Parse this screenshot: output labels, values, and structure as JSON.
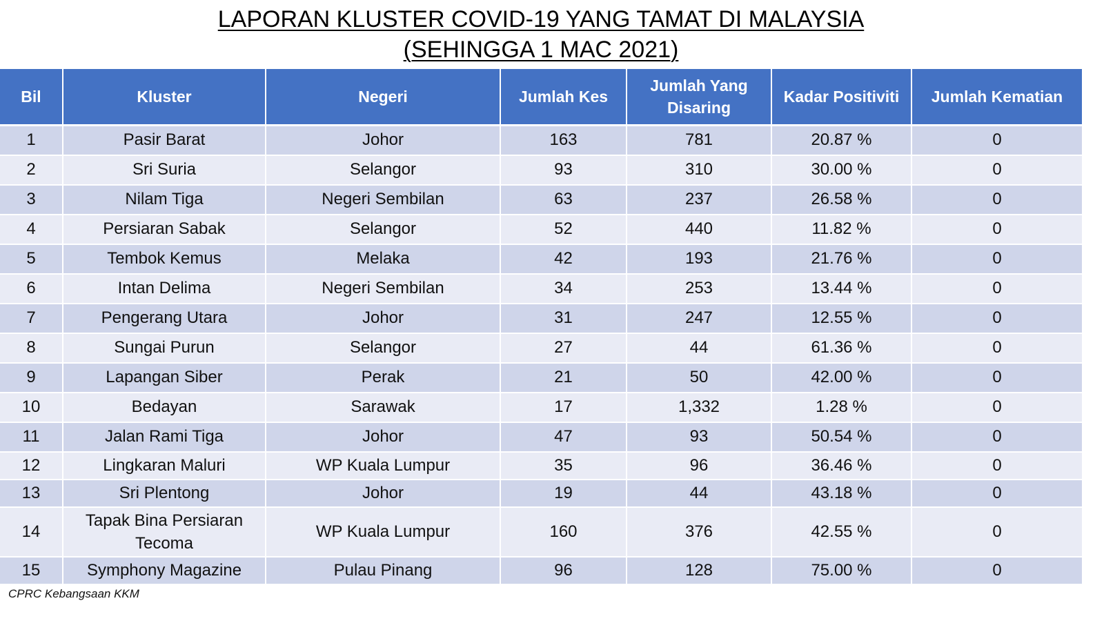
{
  "title": {
    "line1": "LAPORAN KLUSTER COVID-19 YANG TAMAT DI MALAYSIA",
    "line2": "(SEHINGGA  1 MAC 2021)"
  },
  "colors": {
    "header_bg": "#4472c4",
    "row_odd_bg": "#cfd5ea",
    "row_even_bg": "#e9ebf5"
  },
  "table": {
    "headers": [
      "Bil",
      "Kluster",
      "Negeri",
      "Jumlah Kes",
      "Jumlah Yang Disaring",
      "Kadar Positiviti",
      "Jumlah Kematian"
    ],
    "rows": [
      [
        "1",
        "Pasir Barat",
        "Johor",
        "163",
        "781",
        "20.87 %",
        "0"
      ],
      [
        "2",
        "Sri Suria",
        "Selangor",
        "93",
        "310",
        "30.00 %",
        "0"
      ],
      [
        "3",
        "Nilam Tiga",
        "Negeri Sembilan",
        "63",
        "237",
        "26.58 %",
        "0"
      ],
      [
        "4",
        "Persiaran Sabak",
        "Selangor",
        "52",
        "440",
        "11.82 %",
        "0"
      ],
      [
        "5",
        "Tembok Kemus",
        "Melaka",
        "42",
        "193",
        "21.76 %",
        "0"
      ],
      [
        "6",
        "Intan Delima",
        "Negeri Sembilan",
        "34",
        "253",
        "13.44 %",
        "0"
      ],
      [
        "7",
        "Pengerang Utara",
        "Johor",
        "31",
        "247",
        "12.55 %",
        "0"
      ],
      [
        "8",
        "Sungai Purun",
        "Selangor",
        "27",
        "44",
        "61.36 %",
        "0"
      ],
      [
        "9",
        "Lapangan Siber",
        "Perak",
        "21",
        "50",
        "42.00 %",
        "0"
      ],
      [
        "10",
        "Bedayan",
        "Sarawak",
        "17",
        "1,332",
        "1.28 %",
        "0"
      ],
      [
        "11",
        "Jalan Rami Tiga",
        "Johor",
        "47",
        "93",
        "50.54 %",
        "0"
      ],
      [
        "12",
        "Lingkaran Maluri",
        "WP Kuala Lumpur",
        "35",
        "96",
        "36.46 %",
        "0"
      ],
      [
        "13",
        "Sri Plentong",
        "Johor",
        "19",
        "44",
        "43.18 %",
        "0"
      ],
      [
        "14",
        "Tapak Bina Persiaran Tecoma",
        "WP Kuala Lumpur",
        "160",
        "376",
        "42.55 %",
        "0"
      ],
      [
        "15",
        "Symphony Magazine",
        "Pulau Pinang",
        "96",
        "128",
        "75.00 %",
        "0"
      ]
    ]
  },
  "footer": "CPRC Kebangsaan KKM"
}
